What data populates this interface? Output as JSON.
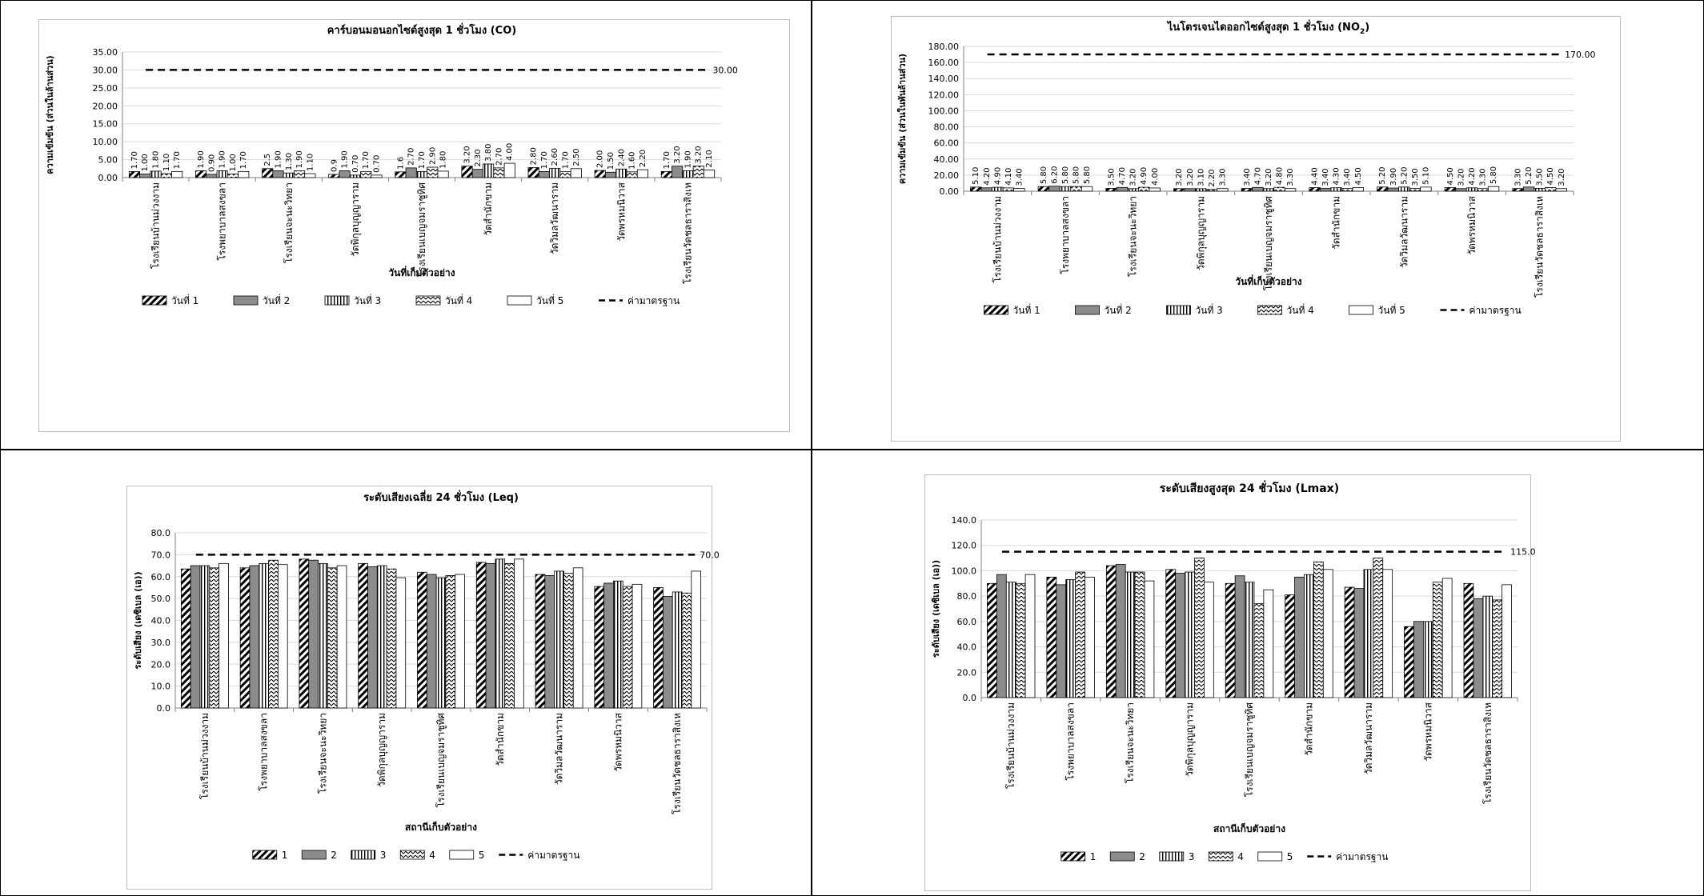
{
  "charts": [
    {
      "type": "bar",
      "title": "คาร์บอนมอนอกไซด์สูงสุด  1 ชั่วโมง (CO)",
      "ylabel": "ความเข้มข้น (ส่วนในล้านส่วน)",
      "xlabel": "วันที่เก็บตัวอย่าง",
      "ylim": [
        0,
        35
      ],
      "yticks": [
        "0.00",
        "5.00",
        "10.00",
        "15.00",
        "20.00",
        "25.00",
        "30.00",
        "35.00"
      ],
      "categories": [
        "โรงเรียนบ้านม่วงงาม",
        "โรงพยาบาลสงขลา",
        "โรงเรียนจะนะวิทยา",
        "วัดพิกุลบุญญาราม",
        "โรงเรียนเบญจมราชูทิศ",
        "วัดสำนักขาม",
        "วัดวิมลวัฒนาราม",
        "วัดพรหมนิวาส",
        "โรงเรียนวัดชลธาราสิงเห"
      ],
      "series": [
        {
          "name": "วันที่ 1",
          "values": [
            1.7,
            1.9,
            2.5,
            0.9,
            1.6,
            3.2,
            2.8,
            2.0,
            1.7
          ],
          "labels": [
            "1.70",
            "1.90",
            "2.5",
            "0.9",
            "1.6",
            "3.20",
            "2.80",
            "2.00",
            "1.70"
          ]
        },
        {
          "name": "วันที่ 2",
          "values": [
            1.0,
            0.9,
            1.9,
            1.9,
            2.7,
            2.3,
            1.7,
            1.5,
            3.2
          ]
        },
        {
          "name": "วันที่ 3",
          "values": [
            1.8,
            1.9,
            1.3,
            0.7,
            1.7,
            3.8,
            2.6,
            2.4,
            1.9
          ]
        },
        {
          "name": "วันที่ 4",
          "values": [
            1.1,
            1.0,
            1.9,
            1.7,
            2.9,
            2.7,
            1.7,
            1.6,
            3.2
          ]
        },
        {
          "name": "วันที่ 5",
          "values": [
            1.7,
            1.7,
            1.1,
            0.7,
            1.8,
            4.0,
            2.5,
            2.2,
            2.1
          ]
        }
      ],
      "standard": {
        "name": "ค่ามาตรฐาน",
        "value": 30,
        "label": "30.00"
      },
      "value_decimals": 2
    },
    {
      "type": "bar",
      "title": "ไนโตรเจนไดออกไซด์สูงสุด  1 ชั่วโมง (NO",
      "title_sub": "2",
      "title_end": ")",
      "ylabel": "ความเข้มข้น (ส่วนในพันล้านส่วน)",
      "xlabel": "วันที่เก็บตัวอย่าง",
      "ylim": [
        0,
        180
      ],
      "yticks": [
        "0.00",
        "20.00",
        "40.00",
        "60.00",
        "80.00",
        "100.00",
        "120.00",
        "140.00",
        "160.00",
        "180.00"
      ],
      "categories": [
        "โรงเรียนบ้านม่วงงาม",
        "โรงพยาบาลสงขลา",
        "โรงเรียนจะนะวิทยา",
        "วัดพิกุลบุญญาราม",
        "โรงเรียนเบญจมราชูทิศ",
        "วัดสำนักขาม",
        "วัดวิมลวัฒนาราม",
        "วัดพรหมนิวาส",
        "โรงเรียนวัดชลธาราสิงเห"
      ],
      "series": [
        {
          "name": "วันที่ 1",
          "values": [
            5.1,
            5.8,
            3.5,
            3.2,
            3.4,
            4.4,
            5.2,
            4.5,
            3.3
          ]
        },
        {
          "name": "วันที่ 2",
          "values": [
            4.2,
            6.2,
            4.7,
            3.2,
            4.7,
            3.4,
            3.9,
            3.2,
            5.2
          ]
        },
        {
          "name": "วันที่ 3",
          "values": [
            4.9,
            5.8,
            3.2,
            3.1,
            3.2,
            4.3,
            5.2,
            4.2,
            3.5
          ]
        },
        {
          "name": "วันที่ 4",
          "values": [
            4.1,
            5.8,
            4.9,
            2.2,
            4.8,
            3.4,
            3.5,
            3.3,
            4.5
          ]
        },
        {
          "name": "วันที่ 5",
          "values": [
            3.4,
            5.8,
            4.0,
            3.3,
            3.3,
            4.5,
            5.1,
            5.8,
            3.2
          ]
        }
      ],
      "standard": {
        "name": "ค่ามาตรฐาน",
        "value": 170,
        "label": "170.00"
      },
      "value_decimals": 2
    },
    {
      "type": "bar",
      "title": "ระดับเสียงเฉลี่ย 24 ชั่วโมง (Leq)",
      "ylabel": "ระดับเสียง (เดซิเบล (เอ))",
      "xlabel": "สถานีเก็บตัวอย่าง",
      "ylim": [
        0,
        80
      ],
      "yticks": [
        "0.0",
        "10.0",
        "20.0",
        "30.0",
        "40.0",
        "50.0",
        "60.0",
        "70.0",
        "80.0"
      ],
      "categories": [
        "โรงเรียนบ้านม่วงงาม",
        "โรงพยาบาลสงขลา",
        "โรงเรียนจะนะวิทยา",
        "วัดพิกุลบุญญาราม",
        "โรงเรียนเบญจมราชูทิศ",
        "วัดสำนักขาม",
        "วัดวิมลวัฒนาราม",
        "วัดพรหมนิวาส",
        "โรงเรียนวัดชลธาราสิงเห"
      ],
      "series": [
        {
          "name": "1",
          "values": [
            63.5,
            64.0,
            68.0,
            66.0,
            62.0,
            66.5,
            61.0,
            55.5,
            55.0
          ]
        },
        {
          "name": "2",
          "values": [
            65.0,
            65.0,
            67.5,
            64.5,
            61.0,
            66.0,
            60.5,
            57.0,
            51.0
          ]
        },
        {
          "name": "3",
          "values": [
            65.0,
            66.0,
            66.0,
            65.0,
            59.5,
            68.0,
            62.5,
            58.0,
            53.0
          ]
        },
        {
          "name": "4",
          "values": [
            64.0,
            67.5,
            64.0,
            63.5,
            60.5,
            66.0,
            61.5,
            55.5,
            52.5
          ]
        },
        {
          "name": "5",
          "values": [
            66.0,
            65.5,
            65.0,
            59.5,
            61.0,
            68.0,
            64.0,
            56.5,
            62.5
          ]
        }
      ],
      "standard": {
        "name": "ค่ามาตรฐาน",
        "value": 70,
        "label": "70.0"
      }
    },
    {
      "type": "bar",
      "title": "ระดับเสียงสูงสุด 24 ชั่วโมง (Lmax)",
      "ylabel": "ระดับเสียง (เดซิเบล (เอ))",
      "xlabel": "สถานีเก็บตัวอย่าง",
      "ylim": [
        0,
        140
      ],
      "yticks": [
        "0.0",
        "20.0",
        "40.0",
        "60.0",
        "80.0",
        "100.0",
        "120.0",
        "140.0"
      ],
      "categories": [
        "โรงเรียนบ้านม่วงงาม",
        "โรงพยาบาลสงขลา",
        "โรงเรียนจะนะวิทยา",
        "วัดพิกุลบุญญาราม",
        "โรงเรียนเบญจมราชูทิศ",
        "วัดสำนักขาม",
        "วัดวิมลวัฒนาราม",
        "วัดพรหมนิวาส",
        "โรงเรียนวัดชลธาราสิงเห"
      ],
      "series": [
        {
          "name": "1",
          "values": [
            90,
            95,
            104,
            101,
            90,
            81,
            87,
            56,
            90
          ]
        },
        {
          "name": "2",
          "values": [
            97,
            89,
            105,
            98,
            96,
            95,
            86,
            60,
            78
          ]
        },
        {
          "name": "3",
          "values": [
            91,
            93,
            99,
            99,
            91,
            97,
            101,
            60,
            80
          ]
        },
        {
          "name": "4",
          "values": [
            90,
            99,
            99,
            110,
            74,
            107,
            110,
            91,
            77
          ]
        },
        {
          "name": "5",
          "values": [
            97,
            95,
            92,
            91,
            85,
            101,
            101,
            94,
            89
          ]
        }
      ],
      "standard": {
        "name": "ค่ามาตรฐาน",
        "value": 115,
        "label": "115.0"
      }
    }
  ],
  "chart_data": [
    {
      "type": "bar",
      "title": "คาร์บอนมอนอกไซด์สูงสุด  1 ชั่วโมง (CO)",
      "xlabel": "วันที่เก็บตัวอย่าง",
      "ylabel": "ความเข้มข้น (ส่วนในล้านส่วน)",
      "ylim": [
        0,
        35
      ],
      "legend": "bottom",
      "grid": true
    },
    {
      "type": "bar",
      "title": "ไนโตรเจนไดออกไซด์สูงสุด  1 ชั่วโมง (NO2)",
      "xlabel": "วันที่เก็บตัวอย่าง",
      "ylabel": "ความเข้มข้น (ส่วนในพันล้านส่วน)",
      "ylim": [
        0,
        180
      ],
      "legend": "bottom",
      "grid": true
    },
    {
      "type": "bar",
      "title": "ระดับเสียงเฉลี่ย 24 ชั่วโมง (Leq)",
      "xlabel": "สถานีเก็บตัวอย่าง",
      "ylabel": "ระดับเสียง (เดซิเบล (เอ))",
      "ylim": [
        0,
        80
      ],
      "legend": "bottom",
      "grid": true
    },
    {
      "type": "bar",
      "title": "ระดับเสียงสูงสุด 24 ชั่วโมง (Lmax)",
      "xlabel": "สถานีเก็บตัวอย่าง",
      "ylabel": "ระดับเสียง (เดซิเบล (เอ))",
      "ylim": [
        0,
        140
      ],
      "legend": "bottom",
      "grid": true
    }
  ]
}
